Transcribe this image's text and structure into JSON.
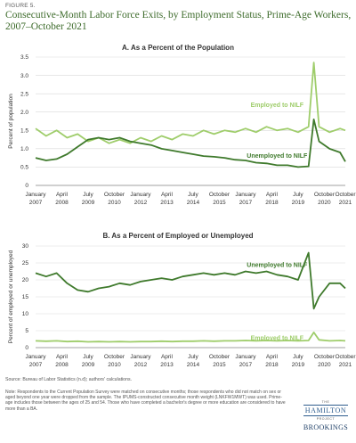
{
  "figure": {
    "label": "FIGURE 5.",
    "title": "Consecutive-Month Labor Force Exits, by Employment Status, Prime-Age Workers, 2007–October 2021",
    "source": "Source: Bureau of Labor Statistics (n.d); authors' calculations.",
    "note": "Note: Respondents to the Current Population Survey were matched on consecutive months; those respondents who did not match on sex or aged beyond one year were dropped from the sample. The IPUMS-constructed consecutive month weight (LNKFW1MWT) was used. Prime-age includes those between the ages of 25 and 54. Those who have completed a bachelor's degree or more education are considered to have more than a BA."
  },
  "logos": {
    "hamilton_the": "THE",
    "hamilton": "HAMILTON",
    "hamilton_project": "PROJECT",
    "brookings": "BROOKINGS"
  },
  "colors": {
    "employed": "#9fcd6b",
    "unemployed": "#3f7a2c",
    "grid": "#d9d9d9",
    "text": "#333333"
  },
  "chart_data": [
    {
      "type": "line",
      "title": "A. As a Percent of the Population",
      "ylabel": "Percent of population",
      "xlabel": "",
      "ylim": [
        0,
        3.5
      ],
      "yticks": [
        0,
        0.5,
        1.0,
        1.5,
        2.0,
        2.5,
        3.0,
        3.5
      ],
      "ytick_labels": [
        "0",
        "0.5",
        "1.0",
        "1.5",
        "2.0",
        "2.5",
        "3.0",
        "3.5"
      ],
      "xlim": [
        "2007-01",
        "2021-10"
      ],
      "xticks": [
        {
          "date": "2007-01",
          "label": [
            "January",
            "2007"
          ]
        },
        {
          "date": "2008-04",
          "label": [
            "April",
            "2008"
          ]
        },
        {
          "date": "2009-07",
          "label": [
            "July",
            "2009"
          ]
        },
        {
          "date": "2010-10",
          "label": [
            "October",
            "2010"
          ]
        },
        {
          "date": "2012-01",
          "label": [
            "January",
            "2012"
          ]
        },
        {
          "date": "2013-04",
          "label": [
            "April",
            "2013"
          ]
        },
        {
          "date": "2014-07",
          "label": [
            "July",
            "2014"
          ]
        },
        {
          "date": "2015-10",
          "label": [
            "October",
            "2015"
          ]
        },
        {
          "date": "2017-01",
          "label": [
            "January",
            "2017"
          ]
        },
        {
          "date": "2018-04",
          "label": [
            "April",
            "2018"
          ]
        },
        {
          "date": "2019-07",
          "label": [
            "July",
            "2019"
          ]
        },
        {
          "date": "2020-10",
          "label": [
            "October",
            "2020"
          ]
        },
        {
          "date": "2021-10",
          "label": [
            "October",
            "2021"
          ]
        }
      ],
      "grid": true,
      "series": [
        {
          "name": "Employed to NILF",
          "color": "#9fcd6b",
          "label_at": {
            "date": "2018-07",
            "value": 2.2
          },
          "points": [
            [
              "2007-01",
              1.55
            ],
            [
              "2007-07",
              1.35
            ],
            [
              "2008-01",
              1.5
            ],
            [
              "2008-07",
              1.3
            ],
            [
              "2009-01",
              1.4
            ],
            [
              "2009-07",
              1.2
            ],
            [
              "2010-01",
              1.3
            ],
            [
              "2010-07",
              1.15
            ],
            [
              "2011-01",
              1.25
            ],
            [
              "2011-07",
              1.15
            ],
            [
              "2012-01",
              1.3
            ],
            [
              "2012-07",
              1.2
            ],
            [
              "2013-01",
              1.35
            ],
            [
              "2013-07",
              1.25
            ],
            [
              "2014-01",
              1.4
            ],
            [
              "2014-07",
              1.35
            ],
            [
              "2015-01",
              1.5
            ],
            [
              "2015-07",
              1.4
            ],
            [
              "2016-01",
              1.5
            ],
            [
              "2016-07",
              1.45
            ],
            [
              "2017-01",
              1.55
            ],
            [
              "2017-07",
              1.45
            ],
            [
              "2018-01",
              1.6
            ],
            [
              "2018-07",
              1.5
            ],
            [
              "2019-01",
              1.55
            ],
            [
              "2019-07",
              1.45
            ],
            [
              "2020-01",
              1.6
            ],
            [
              "2020-04",
              3.35
            ],
            [
              "2020-07",
              1.6
            ],
            [
              "2021-01",
              1.45
            ],
            [
              "2021-07",
              1.55
            ],
            [
              "2021-10",
              1.5
            ]
          ]
        },
        {
          "name": "Unemployed to NILF",
          "color": "#3f7a2c",
          "label_at": {
            "date": "2018-07",
            "value": 0.82
          },
          "points": [
            [
              "2007-01",
              0.75
            ],
            [
              "2007-07",
              0.68
            ],
            [
              "2008-01",
              0.72
            ],
            [
              "2008-07",
              0.85
            ],
            [
              "2009-01",
              1.05
            ],
            [
              "2009-07",
              1.25
            ],
            [
              "2010-01",
              1.3
            ],
            [
              "2010-07",
              1.25
            ],
            [
              "2011-01",
              1.3
            ],
            [
              "2011-07",
              1.2
            ],
            [
              "2012-01",
              1.15
            ],
            [
              "2012-07",
              1.1
            ],
            [
              "2013-01",
              1.0
            ],
            [
              "2013-07",
              0.95
            ],
            [
              "2014-01",
              0.9
            ],
            [
              "2014-07",
              0.85
            ],
            [
              "2015-01",
              0.8
            ],
            [
              "2015-07",
              0.78
            ],
            [
              "2016-01",
              0.75
            ],
            [
              "2016-07",
              0.7
            ],
            [
              "2017-01",
              0.68
            ],
            [
              "2017-07",
              0.62
            ],
            [
              "2018-01",
              0.6
            ],
            [
              "2018-07",
              0.55
            ],
            [
              "2019-01",
              0.55
            ],
            [
              "2019-07",
              0.5
            ],
            [
              "2020-01",
              0.52
            ],
            [
              "2020-04",
              1.8
            ],
            [
              "2020-07",
              1.2
            ],
            [
              "2021-01",
              1.0
            ],
            [
              "2021-07",
              0.9
            ],
            [
              "2021-10",
              0.65
            ]
          ]
        }
      ]
    },
    {
      "type": "line",
      "title": "B. As a Percent of Employed or Unemployed",
      "ylabel": "Percent of employed or unemployed",
      "xlabel": "",
      "ylim": [
        0,
        30
      ],
      "yticks": [
        0,
        5,
        10,
        15,
        20,
        25,
        30
      ],
      "ytick_labels": [
        "0",
        "5",
        "10",
        "15",
        "20",
        "25",
        "30"
      ],
      "xlim": [
        "2007-01",
        "2021-10"
      ],
      "xticks": [
        {
          "date": "2007-01",
          "label": [
            "January",
            "2007"
          ]
        },
        {
          "date": "2008-04",
          "label": [
            "April",
            "2008"
          ]
        },
        {
          "date": "2009-07",
          "label": [
            "July",
            "2009"
          ]
        },
        {
          "date": "2010-10",
          "label": [
            "October",
            "2010"
          ]
        },
        {
          "date": "2012-01",
          "label": [
            "January",
            "2012"
          ]
        },
        {
          "date": "2013-04",
          "label": [
            "April",
            "2013"
          ]
        },
        {
          "date": "2014-07",
          "label": [
            "July",
            "2014"
          ]
        },
        {
          "date": "2015-10",
          "label": [
            "October",
            "2015"
          ]
        },
        {
          "date": "2017-01",
          "label": [
            "January",
            "2017"
          ]
        },
        {
          "date": "2018-04",
          "label": [
            "April",
            "2018"
          ]
        },
        {
          "date": "2019-07",
          "label": [
            "July",
            "2019"
          ]
        },
        {
          "date": "2020-10",
          "label": [
            "October",
            "2020"
          ]
        },
        {
          "date": "2021-10",
          "label": [
            "October",
            "2021"
          ]
        }
      ],
      "grid": true,
      "series": [
        {
          "name": "Unemployed to NILF",
          "color": "#3f7a2c",
          "label_at": {
            "date": "2018-07",
            "value": 24.5
          },
          "points": [
            [
              "2007-01",
              22
            ],
            [
              "2007-07",
              21
            ],
            [
              "2008-01",
              22
            ],
            [
              "2008-07",
              19
            ],
            [
              "2009-01",
              17
            ],
            [
              "2009-07",
              16.5
            ],
            [
              "2010-01",
              17.5
            ],
            [
              "2010-07",
              18
            ],
            [
              "2011-01",
              19
            ],
            [
              "2011-07",
              18.5
            ],
            [
              "2012-01",
              19.5
            ],
            [
              "2012-07",
              20
            ],
            [
              "2013-01",
              20.5
            ],
            [
              "2013-07",
              20
            ],
            [
              "2014-01",
              21
            ],
            [
              "2014-07",
              21.5
            ],
            [
              "2015-01",
              22
            ],
            [
              "2015-07",
              21.5
            ],
            [
              "2016-01",
              22
            ],
            [
              "2016-07",
              21.5
            ],
            [
              "2017-01",
              22.5
            ],
            [
              "2017-07",
              22
            ],
            [
              "2018-01",
              22.5
            ],
            [
              "2018-07",
              21.5
            ],
            [
              "2019-01",
              21
            ],
            [
              "2019-07",
              20
            ],
            [
              "2020-01",
              28
            ],
            [
              "2020-04",
              11.5
            ],
            [
              "2020-07",
              15
            ],
            [
              "2021-01",
              19
            ],
            [
              "2021-07",
              19
            ],
            [
              "2021-10",
              17.5
            ]
          ]
        },
        {
          "name": "Employed to NILF",
          "color": "#9fcd6b",
          "label_at": {
            "date": "2018-07",
            "value": 2.9
          },
          "points": [
            [
              "2007-01",
              2.0
            ],
            [
              "2007-07",
              1.9
            ],
            [
              "2008-01",
              2.0
            ],
            [
              "2008-07",
              1.8
            ],
            [
              "2009-01",
              1.9
            ],
            [
              "2009-07",
              1.7
            ],
            [
              "2010-01",
              1.8
            ],
            [
              "2010-07",
              1.7
            ],
            [
              "2011-01",
              1.8
            ],
            [
              "2011-07",
              1.7
            ],
            [
              "2012-01",
              1.8
            ],
            [
              "2012-07",
              1.8
            ],
            [
              "2013-01",
              1.9
            ],
            [
              "2013-07",
              1.8
            ],
            [
              "2014-01",
              1.9
            ],
            [
              "2014-07",
              1.9
            ],
            [
              "2015-01",
              2.0
            ],
            [
              "2015-07",
              1.9
            ],
            [
              "2016-01",
              2.0
            ],
            [
              "2016-07",
              2.0
            ],
            [
              "2017-01",
              2.1
            ],
            [
              "2017-07",
              2.0
            ],
            [
              "2018-01",
              2.1
            ],
            [
              "2018-07",
              2.0
            ],
            [
              "2019-01",
              2.1
            ],
            [
              "2019-07",
              2.0
            ],
            [
              "2020-01",
              2.1
            ],
            [
              "2020-04",
              4.5
            ],
            [
              "2020-07",
              2.3
            ],
            [
              "2021-01",
              2.0
            ],
            [
              "2021-07",
              2.1
            ],
            [
              "2021-10",
              2.0
            ]
          ]
        }
      ]
    }
  ]
}
